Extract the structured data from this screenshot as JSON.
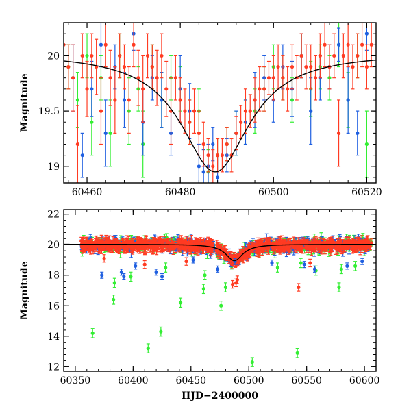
{
  "colors": {
    "green": "#33ee33",
    "blue": "#1f5fe0",
    "red": "#ff3b22",
    "model": "#000000",
    "frame": "#000000"
  },
  "chart_data": [
    {
      "type": "scatter",
      "title": "",
      "xlabel": "",
      "ylabel": "Magnitude",
      "xlim": [
        60455,
        60522
      ],
      "ylim": [
        20.3,
        18.85
      ],
      "y_inverted": true,
      "xticks": [
        60460,
        60480,
        60500,
        60520
      ],
      "yticks": [
        19,
        19.5,
        20
      ],
      "grid": false,
      "legend": "none",
      "series": [
        {
          "color": "green",
          "x": [
            60456,
            60458,
            60460,
            60461,
            60463,
            60465,
            60467,
            60469,
            60471,
            60472,
            60474,
            60476,
            60478,
            60480,
            60482,
            60484,
            60486,
            60488,
            60490,
            60492,
            60494,
            60496,
            60498,
            60500,
            60502,
            60504,
            60506,
            60508,
            60510,
            60512,
            60514,
            60516,
            60518,
            60520
          ],
          "y": [
            19.9,
            19.6,
            20.0,
            19.4,
            19.8,
            19.3,
            20.0,
            19.5,
            19.7,
            19.2,
            19.9,
            19.6,
            19.8,
            19.7,
            19.4,
            19.5,
            18.95,
            19.1,
            19.2,
            19.3,
            19.4,
            19.5,
            19.7,
            19.9,
            19.8,
            19.6,
            20.0,
            19.7,
            19.9,
            19.8,
            20.1,
            19.6,
            20.0,
            19.2
          ],
          "err": [
            0.2,
            0.25,
            0.2,
            0.3,
            0.2,
            0.3,
            0.2,
            0.3,
            0.2,
            0.3,
            0.2,
            0.25,
            0.2,
            0.2,
            0.2,
            0.2,
            0.2,
            0.15,
            0.15,
            0.2,
            0.2,
            0.2,
            0.2,
            0.2,
            0.2,
            0.2,
            0.2,
            0.25,
            0.2,
            0.2,
            0.2,
            0.25,
            0.2,
            0.3
          ]
        },
        {
          "color": "blue",
          "x": [
            60457,
            60459,
            60461,
            60463,
            60464,
            60466,
            60468,
            60470,
            60472,
            60474,
            60476,
            60478,
            60480,
            60482,
            60484,
            60485,
            60486,
            60487,
            60488,
            60490,
            60492,
            60494,
            60496,
            60498,
            60500,
            60502,
            60504,
            60506,
            60508,
            60510,
            60512,
            60514,
            60516,
            60518,
            60520
          ],
          "y": [
            19.8,
            19.1,
            19.7,
            20.1,
            19.3,
            19.9,
            19.6,
            20.2,
            19.4,
            19.8,
            19.6,
            19.3,
            19.7,
            19.5,
            19.0,
            18.95,
            19.0,
            19.2,
            18.9,
            19.1,
            19.3,
            19.4,
            19.6,
            19.8,
            19.6,
            19.9,
            19.7,
            20.0,
            19.5,
            19.8,
            19.9,
            20.1,
            19.6,
            19.3,
            20.2
          ],
          "err": [
            0.3,
            0.2,
            0.25,
            0.2,
            0.3,
            0.2,
            0.25,
            0.15,
            0.3,
            0.2,
            0.25,
            0.2,
            0.3,
            0.25,
            0.2,
            0.2,
            0.2,
            0.15,
            0.2,
            0.15,
            0.2,
            0.2,
            0.25,
            0.2,
            0.2,
            0.2,
            0.25,
            0.2,
            0.3,
            0.2,
            0.2,
            0.15,
            0.3,
            0.2,
            0.15
          ]
        },
        {
          "color": "red",
          "x": [
            60455,
            60456,
            60457,
            60458,
            60459,
            60460,
            60461,
            60462,
            60463,
            60464,
            60465,
            60466,
            60467,
            60468,
            60469,
            60470,
            60471,
            60472,
            60473,
            60474,
            60475,
            60476,
            60477,
            60478,
            60479,
            60480,
            60481,
            60482,
            60483,
            60484,
            60485,
            60486,
            60487,
            60488,
            60489,
            60490,
            60491,
            60492,
            60493,
            60494,
            60495,
            60496,
            60497,
            60498,
            60499,
            60500,
            60501,
            60502,
            60503,
            60504,
            60505,
            60506,
            60507,
            60508,
            60509,
            60510,
            60511,
            60512,
            60513,
            60514,
            60515,
            60516,
            60517,
            60518,
            60519,
            60520,
            60521
          ],
          "y": [
            20.1,
            19.9,
            19.8,
            19.2,
            20.0,
            19.7,
            20.0,
            19.9,
            19.5,
            20.1,
            19.8,
            19.6,
            20.0,
            19.9,
            19.6,
            20.1,
            19.8,
            19.7,
            20.0,
            19.9,
            19.8,
            20.0,
            19.7,
            19.5,
            19.8,
            19.6,
            19.5,
            19.4,
            19.5,
            19.3,
            19.2,
            19.1,
            19.0,
            19.1,
            19.1,
            19.2,
            19.1,
            19.3,
            19.4,
            19.5,
            19.5,
            19.6,
            19.7,
            19.7,
            19.8,
            19.8,
            19.9,
            19.8,
            19.7,
            19.9,
            19.8,
            20.0,
            19.9,
            19.9,
            19.8,
            20.0,
            20.1,
            19.9,
            20.0,
            19.3,
            20.0,
            20.1,
            19.9,
            20.0,
            20.1,
            19.9,
            20.1
          ],
          "err": [
            0.2,
            0.2,
            0.3,
            0.35,
            0.2,
            0.25,
            0.2,
            0.25,
            0.3,
            0.2,
            0.25,
            0.3,
            0.2,
            0.2,
            0.3,
            0.2,
            0.25,
            0.3,
            0.2,
            0.2,
            0.25,
            0.2,
            0.25,
            0.3,
            0.2,
            0.2,
            0.2,
            0.2,
            0.2,
            0.2,
            0.2,
            0.15,
            0.15,
            0.15,
            0.15,
            0.15,
            0.15,
            0.15,
            0.15,
            0.2,
            0.15,
            0.2,
            0.2,
            0.2,
            0.15,
            0.2,
            0.2,
            0.2,
            0.2,
            0.2,
            0.2,
            0.2,
            0.2,
            0.2,
            0.2,
            0.2,
            0.2,
            0.2,
            0.2,
            0.3,
            0.2,
            0.2,
            0.2,
            0.2,
            0.2,
            0.2,
            0.2
          ]
        }
      ],
      "model": {
        "type": "lorentzian",
        "peak_x": 60487.5,
        "peak_mag": 18.95,
        "base_mag": 20.03,
        "width_days": 9
      }
    },
    {
      "type": "scatter",
      "title": "",
      "xlabel": "HJD−2400000",
      "ylabel": "Magnitude",
      "xlim": [
        60340,
        60610
      ],
      "ylim": [
        22.3,
        11.7
      ],
      "y_inverted": true,
      "xticks": [
        60350,
        60400,
        60450,
        60500,
        60550,
        60600
      ],
      "yticks": [
        12,
        14,
        16,
        18,
        20,
        22
      ],
      "grid": false,
      "legend": "none",
      "series": [
        {
          "color": "green",
          "outliers": {
            "x": [
              60365,
              60383,
              60384,
              60398,
              60413,
              60424,
              60428,
              60441,
              60461,
              60462,
              60476,
              60480,
              60503,
              60525,
              60542,
              60545,
              60558,
              60578,
              60580,
              60592
            ],
            "y": [
              14.2,
              16.4,
              17.5,
              17.9,
              13.2,
              14.3,
              18.5,
              16.2,
              17.1,
              18.0,
              16.0,
              17.2,
              12.3,
              18.5,
              12.9,
              18.8,
              18.3,
              17.2,
              18.4,
              18.6
            ]
          },
          "err_outlier": 0.3
        },
        {
          "color": "blue",
          "outliers": {
            "x": [
              60373,
              60390,
              60392,
              60402,
              60420,
              60425,
              60452,
              60473,
              60488,
              60520,
              60548,
              60557,
              60585,
              60598
            ],
            "y": [
              18.0,
              18.2,
              17.9,
              18.6,
              18.2,
              17.9,
              19.0,
              18.4,
              18.9,
              18.8,
              18.7,
              18.4,
              18.6,
              18.9
            ]
          },
          "err_outlier": 0.2
        },
        {
          "color": "red",
          "outliers": {
            "x": [
              60375,
              60410,
              60446,
              60486,
              60489,
              60490,
              60543,
              60553
            ],
            "y": [
              19.1,
              18.7,
              18.9,
              17.4,
              17.5,
              17.7,
              17.2,
              18.8
            ]
          },
          "err_outlier": 0.25
        }
      ],
      "baseline": {
        "x_start": 60355,
        "x_end": 60606,
        "mag": 20.0,
        "scatter": 0.35,
        "bump_peak_x": 60487.5,
        "bump_peak_mag": 18.95,
        "bump_width_days": 9
      },
      "model": {
        "type": "lorentzian",
        "peak_x": 60487.5,
        "peak_mag": 18.95,
        "base_mag": 20.03,
        "width_days": 9
      }
    }
  ]
}
